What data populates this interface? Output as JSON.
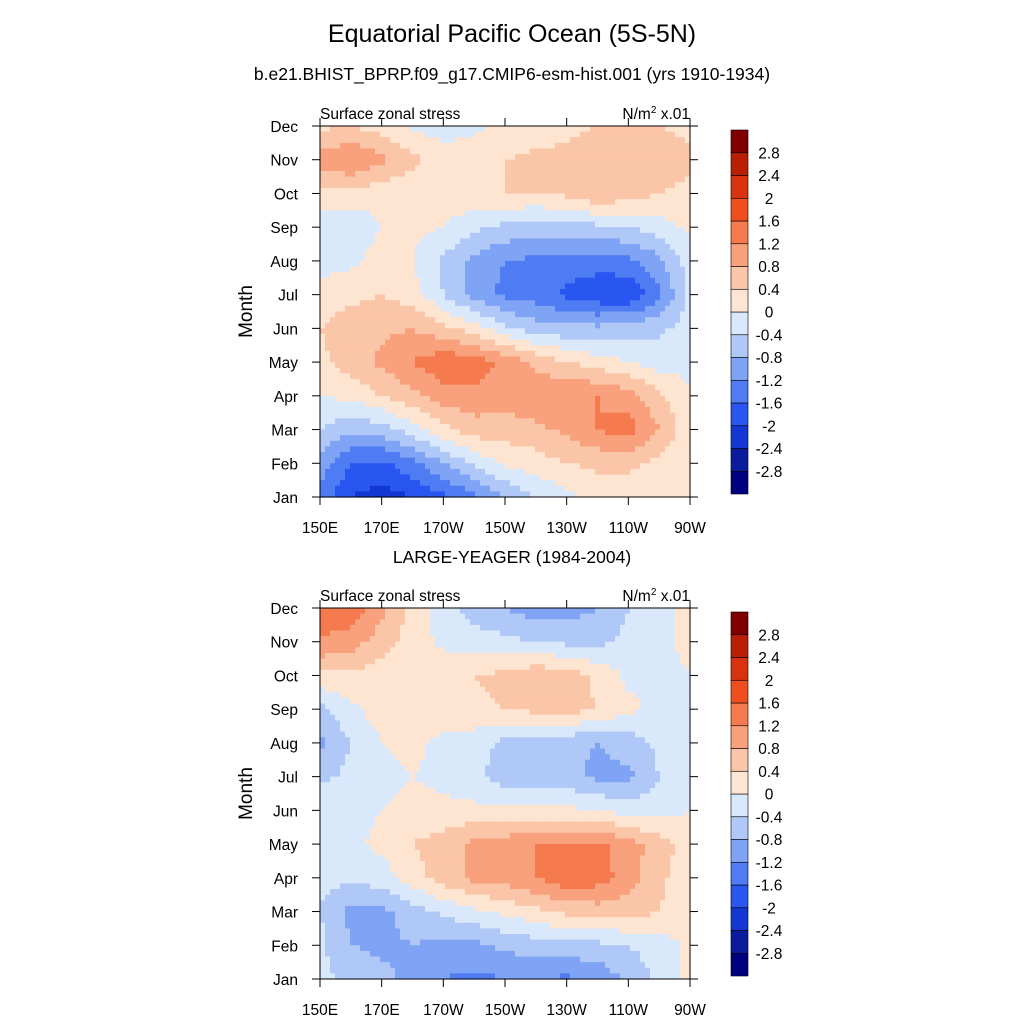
{
  "header": {
    "title": "Equatorial Pacific Ocean (5S-5N)",
    "subtitle": "b.e21.BHIST_BPRP.f09_g17.CMIP6-esm-hist.001 (yrs 1910-1934)",
    "second_title": "LARGE-YEAGER (1984-2004)"
  },
  "chart_data": [
    {
      "type": "heatmap",
      "title": "b.e21.BHIST_BPRP.f09_g17.CMIP6-esm-hist.001 (yrs 1910-1934)",
      "left_string": "Surface zonal stress",
      "right_string_main": "N/m",
      "right_string_sup": "2",
      "right_string_tail": " x.01",
      "xlabel": "",
      "ylabel": "Month",
      "x_ticks": [
        "150E",
        "170E",
        "170W",
        "150W",
        "130W",
        "110W",
        "90W"
      ],
      "y_ticks": [
        "Jan",
        "Feb",
        "Mar",
        "Apr",
        "May",
        "Jun",
        "Jul",
        "Aug",
        "Sep",
        "Oct",
        "Nov",
        "Dec"
      ],
      "x_lon": [
        150,
        160,
        170,
        180,
        190,
        200,
        210,
        220,
        230,
        240,
        250,
        260,
        270
      ],
      "grid": [
        [
          -1.3,
          -2.0,
          -2.2,
          -2.0,
          -1.7,
          -1.3,
          -0.8,
          -0.4,
          -0.1,
          0.1,
          0.1,
          0.1,
          0.0
        ],
        [
          -1.0,
          -1.6,
          -1.7,
          -1.3,
          -0.8,
          -0.3,
          0.1,
          0.2,
          0.4,
          0.5,
          0.5,
          0.3,
          0.0
        ],
        [
          -0.4,
          -0.7,
          -0.6,
          -0.2,
          0.3,
          0.6,
          0.6,
          0.7,
          0.9,
          1.2,
          1.4,
          0.8,
          0.1
        ],
        [
          0.0,
          0.1,
          0.4,
          0.7,
          1.0,
          1.1,
          1.0,
          1.1,
          1.2,
          1.2,
          1.0,
          0.5,
          0.0
        ],
        [
          0.3,
          0.6,
          0.9,
          1.2,
          1.5,
          1.4,
          1.1,
          0.7,
          0.4,
          0.2,
          0.0,
          -0.2,
          -0.1
        ],
        [
          0.4,
          0.6,
          0.7,
          0.8,
          0.5,
          0.2,
          -0.3,
          -0.6,
          -0.7,
          -0.7,
          -0.6,
          -0.5,
          -0.2
        ],
        [
          0.2,
          0.3,
          0.4,
          0.2,
          -0.4,
          -1.0,
          -1.3,
          -1.4,
          -1.7,
          -1.9,
          -2.0,
          -1.3,
          -0.3
        ],
        [
          -0.2,
          -0.1,
          0.2,
          0.0,
          -0.5,
          -0.9,
          -1.2,
          -1.3,
          -1.4,
          -1.4,
          -1.3,
          -0.9,
          -0.2
        ],
        [
          -0.4,
          -0.3,
          0.0,
          0.1,
          0.0,
          -0.3,
          -0.5,
          -0.6,
          -0.6,
          -0.5,
          -0.4,
          -0.2,
          0.1
        ],
        [
          0.3,
          0.3,
          0.1,
          0.1,
          0.2,
          0.3,
          0.4,
          0.4,
          0.5,
          0.8,
          0.6,
          0.4,
          0.3
        ],
        [
          1.0,
          1.2,
          0.9,
          0.5,
          0.2,
          0.3,
          0.4,
          0.5,
          0.5,
          0.6,
          0.6,
          0.6,
          0.5
        ],
        [
          0.3,
          0.4,
          0.2,
          -0.1,
          -0.2,
          -0.1,
          0.1,
          0.2,
          0.3,
          0.4,
          0.4,
          0.4,
          0.3
        ]
      ],
      "levels": [
        -2.8,
        -2.4,
        -2.0,
        -1.6,
        -1.2,
        -0.8,
        -0.4,
        0,
        0.4,
        0.8,
        1.2,
        1.6,
        2.0,
        2.4,
        2.8
      ],
      "level_labels": [
        "-2.8",
        "-2.4",
        "-2",
        "-1.6",
        "-1.2",
        "-0.8",
        "-0.4",
        "0",
        "0.4",
        "0.8",
        "1.2",
        "1.6",
        "2",
        "2.4",
        "2.8"
      ],
      "colors": [
        "#00007f",
        "#0a1c9c",
        "#1237d2",
        "#2956f0",
        "#4f7cf2",
        "#7fa3f5",
        "#b0c8f8",
        "#dae8fb",
        "#fde5d2",
        "#fbc5a8",
        "#f9a07c",
        "#f57a4e",
        "#ef4f1f",
        "#d93210",
        "#b81f04",
        "#800000"
      ]
    },
    {
      "type": "heatmap",
      "title": "LARGE-YEAGER (1984-2004)",
      "left_string": "Surface zonal stress",
      "right_string_main": "N/m",
      "right_string_sup": "2",
      "right_string_tail": " x.01",
      "xlabel": "",
      "ylabel": "Month",
      "x_ticks": [
        "150E",
        "170E",
        "170W",
        "150W",
        "130W",
        "110W",
        "90W"
      ],
      "y_ticks": [
        "Jan",
        "Feb",
        "Mar",
        "Apr",
        "May",
        "Jun",
        "Jul",
        "Aug",
        "Sep",
        "Oct",
        "Nov",
        "Dec"
      ],
      "x_lon": [
        150,
        160,
        170,
        180,
        190,
        200,
        210,
        220,
        230,
        240,
        250,
        260,
        270
      ],
      "grid": [
        [
          -0.3,
          -0.5,
          -0.7,
          -0.9,
          -1.2,
          -1.3,
          -1.2,
          -1.1,
          -1.3,
          -1.1,
          -0.7,
          -0.3,
          0.1
        ],
        [
          -0.3,
          -0.8,
          -0.9,
          -0.8,
          -0.9,
          -0.9,
          -0.7,
          -0.6,
          -0.5,
          -0.5,
          -0.4,
          -0.2,
          0.1
        ],
        [
          -0.4,
          -0.9,
          -0.9,
          -0.6,
          -0.3,
          -0.1,
          0.1,
          0.3,
          0.5,
          0.6,
          0.6,
          0.4,
          0.1
        ],
        [
          -0.3,
          -0.3,
          -0.2,
          0.2,
          0.6,
          0.9,
          1.0,
          1.2,
          1.5,
          1.4,
          1.0,
          0.5,
          0.1
        ],
        [
          -0.1,
          -0.1,
          0.1,
          0.4,
          0.6,
          0.9,
          1.0,
          1.2,
          1.2,
          1.3,
          1.0,
          0.6,
          0.2
        ],
        [
          -0.1,
          -0.1,
          0.0,
          0.1,
          0.1,
          0.1,
          0.1,
          0.1,
          0.1,
          0.0,
          -0.2,
          -0.2,
          0.0
        ],
        [
          -0.5,
          -0.3,
          -0.1,
          0.0,
          -0.1,
          -0.3,
          -0.6,
          -0.6,
          -0.7,
          -0.9,
          -0.9,
          -0.4,
          -0.1
        ],
        [
          -0.9,
          -0.4,
          0.0,
          0.1,
          -0.1,
          -0.2,
          -0.5,
          -0.5,
          -0.7,
          -0.8,
          -0.6,
          -0.3,
          -0.1
        ],
        [
          -0.5,
          -0.1,
          0.2,
          0.2,
          0.2,
          0.3,
          0.4,
          0.5,
          0.6,
          0.4,
          0.1,
          -0.1,
          0.0
        ],
        [
          0.3,
          0.3,
          0.2,
          0.2,
          0.3,
          0.4,
          0.5,
          0.7,
          0.6,
          0.3,
          -0.1,
          -0.1,
          0.0
        ],
        [
          1.2,
          1.0,
          0.6,
          0.2,
          -0.1,
          -0.2,
          -0.3,
          -0.4,
          -0.5,
          -0.5,
          -0.3,
          -0.1,
          0.1
        ],
        [
          1.3,
          1.5,
          0.9,
          0.3,
          -0.2,
          -0.6,
          -0.8,
          -1.0,
          -1.0,
          -0.8,
          -0.4,
          -0.1,
          0.1
        ]
      ],
      "levels": [
        -2.8,
        -2.4,
        -2.0,
        -1.6,
        -1.2,
        -0.8,
        -0.4,
        0,
        0.4,
        0.8,
        1.2,
        1.6,
        2.0,
        2.4,
        2.8
      ],
      "level_labels": [
        "-2.8",
        "-2.4",
        "-2",
        "-1.6",
        "-1.2",
        "-0.8",
        "-0.4",
        "0",
        "0.4",
        "0.8",
        "1.2",
        "1.6",
        "2",
        "2.4",
        "2.8"
      ],
      "colors": [
        "#00007f",
        "#0a1c9c",
        "#1237d2",
        "#2956f0",
        "#4f7cf2",
        "#7fa3f5",
        "#b0c8f8",
        "#dae8fb",
        "#fde5d2",
        "#fbc5a8",
        "#f9a07c",
        "#f57a4e",
        "#ef4f1f",
        "#d93210",
        "#b81f04",
        "#800000"
      ]
    }
  ]
}
